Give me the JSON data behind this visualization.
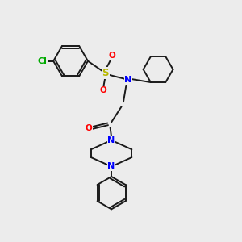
{
  "background_color": "#ececec",
  "bond_color": "#1a1a1a",
  "atom_colors": {
    "N": "#0000ff",
    "O": "#ff0000",
    "S": "#b8b800",
    "Cl": "#00aa00",
    "C": "#1a1a1a"
  },
  "figsize": [
    3.0,
    3.0
  ],
  "dpi": 100,
  "bond_lw": 1.4,
  "font_size": 7.5
}
